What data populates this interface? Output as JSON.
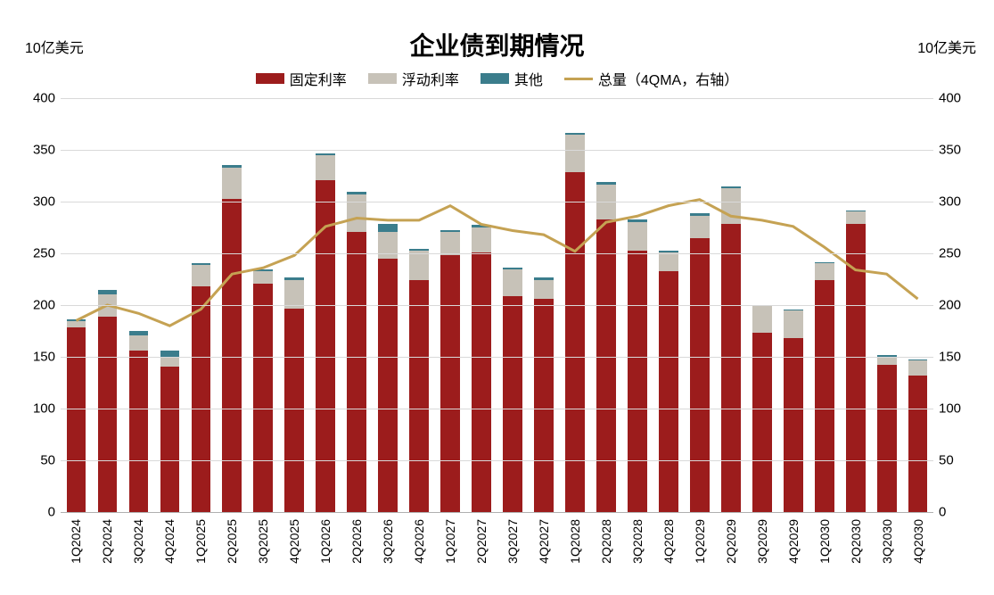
{
  "chart": {
    "title": "企业债到期情况",
    "y_unit_left": "10亿美元",
    "y_unit_right": "10亿美元",
    "title_fontsize": 28,
    "label_fontsize": 16,
    "background_color": "#ffffff",
    "grid_color": "#d9d9d9",
    "axis_color": "#b0b0b0",
    "ylim": [
      0,
      400
    ],
    "ytick_step": 50,
    "yticks": [
      0,
      50,
      100,
      150,
      200,
      250,
      300,
      350,
      400
    ],
    "legend": {
      "items": [
        {
          "label": "固定利率",
          "color": "#9c1c1c",
          "type": "box"
        },
        {
          "label": "浮动利率",
          "color": "#c7c2b8",
          "type": "box"
        },
        {
          "label": "其他",
          "color": "#3b7d8c",
          "type": "box"
        },
        {
          "label": "总量（4QMA，右轴）",
          "color": "#c5a253",
          "type": "line"
        }
      ]
    },
    "colors": {
      "fixed": "#9c1c1c",
      "floating": "#c7c2b8",
      "other": "#3b7d8c",
      "line": "#c5a253"
    },
    "line_width": 3,
    "categories": [
      "1Q2024",
      "2Q2024",
      "3Q2024",
      "4Q2024",
      "1Q2025",
      "2Q2025",
      "3Q2025",
      "4Q2025",
      "1Q2026",
      "2Q2026",
      "3Q2026",
      "4Q2026",
      "1Q2027",
      "2Q2027",
      "3Q2027",
      "4Q2027",
      "1Q2028",
      "2Q2028",
      "3Q2028",
      "4Q2028",
      "1Q2029",
      "2Q2029",
      "3Q2029",
      "4Q2029",
      "1Q2030",
      "2Q2030",
      "3Q2030",
      "4Q2030"
    ],
    "series": {
      "fixed": [
        178,
        188,
        156,
        140,
        218,
        302,
        220,
        196,
        320,
        270,
        244,
        224,
        248,
        250,
        208,
        206,
        328,
        282,
        252,
        232,
        264,
        278,
        173,
        168,
        224,
        278,
        142,
        132
      ],
      "floating": [
        6,
        22,
        14,
        9,
        20,
        30,
        12,
        28,
        24,
        36,
        26,
        28,
        22,
        24,
        26,
        18,
        36,
        34,
        28,
        18,
        22,
        34,
        26,
        26,
        16,
        12,
        8,
        14
      ],
      "other": [
        2,
        4,
        5,
        7,
        2,
        3,
        2,
        2,
        2,
        3,
        8,
        2,
        2,
        3,
        2,
        2,
        2,
        2,
        2,
        2,
        2,
        2,
        1,
        1,
        1,
        1,
        1,
        1
      ]
    },
    "line_4qma": [
      185,
      200,
      192,
      180,
      196,
      230,
      236,
      248,
      276,
      284,
      282,
      282,
      296,
      278,
      272,
      268,
      252,
      280,
      286,
      296,
      302,
      286,
      282,
      276,
      256,
      234,
      230,
      206
    ]
  }
}
